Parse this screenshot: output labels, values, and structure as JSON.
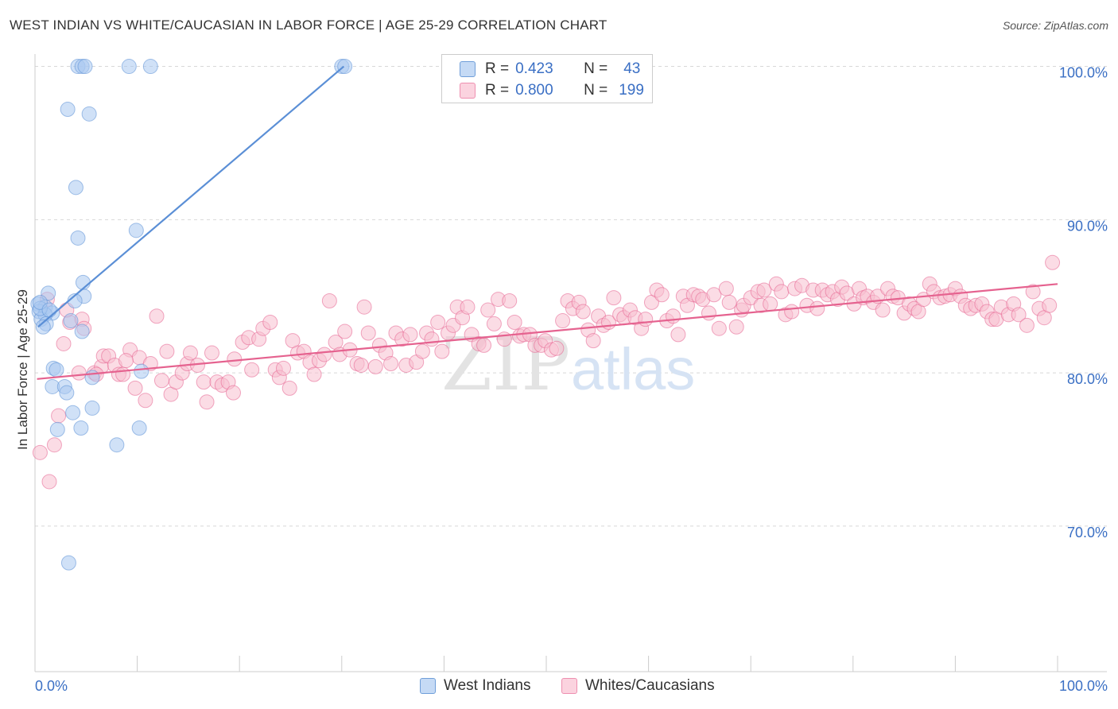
{
  "title": "WEST INDIAN VS WHITE/CAUCASIAN IN LABOR FORCE | AGE 25-29 CORRELATION CHART",
  "source": "Source: ZipAtlas.com",
  "watermark": {
    "zip": "ZIP",
    "atlas": "atlas"
  },
  "stats": [
    {
      "r_label": "R =",
      "r_value": "0.423",
      "n_label": "N =",
      "n_value": "43",
      "color": "#a9c8f0"
    },
    {
      "r_label": "R =",
      "r_value": "0.800",
      "n_label": "N =",
      "n_value": "199",
      "color": "#f8bfd0"
    }
  ],
  "legend": [
    {
      "label": "West Indians",
      "color": "#a9c8f0"
    },
    {
      "label": "Whites/Caucasians",
      "color": "#f8bfd0"
    }
  ],
  "chart_data": {
    "type": "scatter",
    "xlabel": "",
    "ylabel": "In Labor Force | Age 25-29",
    "xlim": [
      0,
      100
    ],
    "ylim": [
      60.5,
      102
    ],
    "x_tick_labels": [
      {
        "value": 0,
        "label": "0.0%"
      },
      {
        "value": 100,
        "label": "100.0%"
      }
    ],
    "y_tick_labels": [
      {
        "value": 100,
        "label": "100.0%"
      },
      {
        "value": 90,
        "label": "90.0%"
      },
      {
        "value": 80,
        "label": "80.0%"
      },
      {
        "value": 70,
        "label": "70.0%"
      }
    ],
    "grid": true,
    "legend_position": "bottom",
    "series": [
      {
        "name": "West Indians",
        "color": "#5b8fd6",
        "fill": "#a9c8f0",
        "trend": {
          "x": [
            0.3,
            30.2
          ],
          "y": [
            83.0,
            100.0
          ]
        },
        "points": [
          [
            4.2,
            100.0
          ],
          [
            4.6,
            100.0
          ],
          [
            4.9,
            100.0
          ],
          [
            9.2,
            100.0
          ],
          [
            11.3,
            100.0
          ],
          [
            30.0,
            100.0
          ],
          [
            30.3,
            100.0
          ],
          [
            3.2,
            97.2
          ],
          [
            5.3,
            96.9
          ],
          [
            4.0,
            92.1
          ],
          [
            4.2,
            88.8
          ],
          [
            9.9,
            89.3
          ],
          [
            4.7,
            85.9
          ],
          [
            1.3,
            85.2
          ],
          [
            4.8,
            85.0
          ],
          [
            0.3,
            84.5
          ],
          [
            1.0,
            84.3
          ],
          [
            0.4,
            84.0
          ],
          [
            1.7,
            83.9
          ],
          [
            1.0,
            83.8
          ],
          [
            0.6,
            83.5
          ],
          [
            3.5,
            83.4
          ],
          [
            1.1,
            83.2
          ],
          [
            0.8,
            83.0
          ],
          [
            4.6,
            82.7
          ],
          [
            0.5,
            84.2
          ],
          [
            3.9,
            84.7
          ],
          [
            1.8,
            80.3
          ],
          [
            2.1,
            80.2
          ],
          [
            10.4,
            80.1
          ],
          [
            5.6,
            79.7
          ],
          [
            1.7,
            79.1
          ],
          [
            2.9,
            79.1
          ],
          [
            3.1,
            78.7
          ],
          [
            5.6,
            77.7
          ],
          [
            3.7,
            77.4
          ],
          [
            2.2,
            76.3
          ],
          [
            4.5,
            76.4
          ],
          [
            10.2,
            76.4
          ],
          [
            8.0,
            75.3
          ],
          [
            3.3,
            67.6
          ],
          [
            0.5,
            84.6
          ],
          [
            1.4,
            84.1
          ]
        ]
      },
      {
        "name": "Whites/Caucasians",
        "color": "#e5628f",
        "fill": "#f8bfd0",
        "trend": {
          "x": [
            0.2,
            100
          ],
          "y": [
            79.6,
            85.8
          ]
        },
        "points": [
          [
            0.5,
            74.8
          ],
          [
            1.4,
            72.9
          ],
          [
            1.9,
            75.3
          ],
          [
            2.3,
            77.2
          ],
          [
            2.8,
            81.9
          ],
          [
            3.4,
            83.3
          ],
          [
            4.3,
            80.0
          ],
          [
            4.6,
            83.5
          ],
          [
            4.8,
            82.9
          ],
          [
            5.8,
            80.0
          ],
          [
            6.5,
            80.4
          ],
          [
            6.7,
            81.1
          ],
          [
            7.2,
            81.1
          ],
          [
            7.8,
            80.5
          ],
          [
            8.2,
            79.9
          ],
          [
            8.6,
            79.9
          ],
          [
            9.3,
            81.5
          ],
          [
            9.8,
            79.0
          ],
          [
            10.2,
            81.0
          ],
          [
            10.8,
            78.2
          ],
          [
            11.3,
            80.6
          ],
          [
            11.9,
            83.7
          ],
          [
            12.4,
            79.5
          ],
          [
            12.9,
            81.4
          ],
          [
            13.3,
            78.6
          ],
          [
            13.8,
            79.4
          ],
          [
            14.4,
            80.0
          ],
          [
            14.9,
            80.6
          ],
          [
            15.2,
            81.3
          ],
          [
            15.9,
            80.5
          ],
          [
            16.5,
            79.4
          ],
          [
            16.8,
            78.1
          ],
          [
            17.3,
            81.3
          ],
          [
            17.8,
            79.4
          ],
          [
            18.3,
            79.2
          ],
          [
            18.9,
            79.4
          ],
          [
            19.4,
            78.7
          ],
          [
            19.5,
            80.9
          ],
          [
            20.3,
            82.0
          ],
          [
            20.9,
            82.3
          ],
          [
            21.2,
            80.2
          ],
          [
            21.9,
            82.2
          ],
          [
            22.3,
            82.9
          ],
          [
            23.0,
            83.3
          ],
          [
            23.5,
            80.2
          ],
          [
            23.9,
            79.7
          ],
          [
            24.3,
            80.3
          ],
          [
            24.9,
            79.0
          ],
          [
            25.2,
            82.1
          ],
          [
            25.7,
            81.3
          ],
          [
            26.3,
            81.4
          ],
          [
            26.9,
            80.7
          ],
          [
            27.3,
            79.9
          ],
          [
            27.8,
            80.8
          ],
          [
            28.3,
            81.2
          ],
          [
            28.8,
            84.7
          ],
          [
            29.4,
            82.0
          ],
          [
            29.8,
            81.2
          ],
          [
            30.3,
            82.7
          ],
          [
            30.8,
            81.5
          ],
          [
            31.5,
            80.6
          ],
          [
            31.9,
            80.5
          ],
          [
            32.2,
            84.3
          ],
          [
            32.6,
            82.6
          ],
          [
            33.3,
            80.4
          ],
          [
            33.7,
            81.8
          ],
          [
            34.3,
            81.3
          ],
          [
            34.8,
            80.6
          ],
          [
            35.3,
            82.6
          ],
          [
            35.9,
            82.2
          ],
          [
            36.3,
            80.5
          ],
          [
            36.7,
            82.5
          ],
          [
            37.3,
            80.7
          ],
          [
            37.9,
            81.4
          ],
          [
            38.3,
            82.6
          ],
          [
            38.8,
            82.2
          ],
          [
            39.4,
            83.3
          ],
          [
            39.8,
            81.4
          ],
          [
            40.4,
            82.6
          ],
          [
            40.9,
            83.1
          ],
          [
            41.3,
            84.3
          ],
          [
            41.8,
            83.6
          ],
          [
            42.3,
            84.3
          ],
          [
            42.7,
            82.5
          ],
          [
            43.4,
            81.9
          ],
          [
            43.9,
            81.8
          ],
          [
            44.3,
            84.1
          ],
          [
            44.9,
            83.2
          ],
          [
            45.3,
            84.8
          ],
          [
            45.9,
            82.2
          ],
          [
            46.4,
            84.7
          ],
          [
            46.9,
            83.3
          ],
          [
            47.4,
            82.4
          ],
          [
            47.8,
            82.5
          ],
          [
            48.4,
            82.5
          ],
          [
            48.9,
            81.8
          ],
          [
            49.5,
            81.8
          ],
          [
            49.9,
            82.1
          ],
          [
            50.5,
            81.5
          ],
          [
            51.0,
            81.6
          ],
          [
            51.6,
            83.4
          ],
          [
            52.1,
            84.7
          ],
          [
            52.6,
            84.2
          ],
          [
            53.2,
            84.6
          ],
          [
            53.6,
            84.0
          ],
          [
            54.1,
            82.8
          ],
          [
            54.6,
            82.1
          ],
          [
            55.1,
            83.7
          ],
          [
            55.6,
            83.1
          ],
          [
            56.1,
            83.3
          ],
          [
            56.6,
            84.9
          ],
          [
            57.2,
            83.8
          ],
          [
            57.6,
            83.6
          ],
          [
            58.2,
            84.1
          ],
          [
            58.7,
            83.6
          ],
          [
            59.3,
            82.9
          ],
          [
            59.7,
            83.5
          ],
          [
            60.3,
            84.6
          ],
          [
            60.8,
            85.4
          ],
          [
            61.3,
            85.1
          ],
          [
            61.8,
            83.4
          ],
          [
            62.4,
            83.7
          ],
          [
            62.9,
            82.5
          ],
          [
            63.4,
            85.0
          ],
          [
            63.8,
            84.4
          ],
          [
            64.4,
            85.1
          ],
          [
            64.9,
            85.0
          ],
          [
            65.3,
            84.8
          ],
          [
            65.9,
            83.9
          ],
          [
            66.4,
            85.1
          ],
          [
            66.9,
            82.9
          ],
          [
            67.6,
            85.5
          ],
          [
            67.9,
            84.6
          ],
          [
            68.6,
            83.0
          ],
          [
            69.1,
            84.1
          ],
          [
            69.3,
            84.4
          ],
          [
            70.0,
            84.9
          ],
          [
            70.7,
            85.3
          ],
          [
            71.0,
            84.4
          ],
          [
            71.3,
            85.4
          ],
          [
            71.9,
            84.5
          ],
          [
            72.5,
            85.8
          ],
          [
            73.0,
            85.3
          ],
          [
            73.4,
            83.8
          ],
          [
            74.0,
            84.0
          ],
          [
            74.3,
            85.5
          ],
          [
            75.0,
            85.7
          ],
          [
            75.5,
            84.4
          ],
          [
            76.1,
            85.4
          ],
          [
            76.5,
            84.2
          ],
          [
            77.0,
            85.4
          ],
          [
            77.5,
            85.1
          ],
          [
            78.0,
            85.3
          ],
          [
            78.5,
            84.8
          ],
          [
            78.9,
            85.6
          ],
          [
            79.4,
            85.2
          ],
          [
            80.1,
            84.5
          ],
          [
            80.6,
            85.5
          ],
          [
            81.0,
            84.9
          ],
          [
            81.4,
            85.0
          ],
          [
            82.0,
            84.6
          ],
          [
            82.4,
            85.0
          ],
          [
            82.9,
            84.1
          ],
          [
            83.4,
            85.5
          ],
          [
            83.9,
            85.0
          ],
          [
            84.4,
            84.9
          ],
          [
            85.0,
            83.9
          ],
          [
            85.5,
            84.5
          ],
          [
            86.0,
            84.2
          ],
          [
            86.4,
            84.0
          ],
          [
            86.9,
            84.8
          ],
          [
            87.5,
            85.8
          ],
          [
            87.9,
            85.3
          ],
          [
            88.5,
            84.9
          ],
          [
            89.0,
            85.0
          ],
          [
            89.5,
            85.1
          ],
          [
            90.0,
            85.5
          ],
          [
            90.5,
            85.0
          ],
          [
            91.0,
            84.4
          ],
          [
            91.5,
            84.2
          ],
          [
            92.0,
            84.4
          ],
          [
            92.6,
            84.5
          ],
          [
            93.1,
            84.0
          ],
          [
            93.6,
            83.5
          ],
          [
            94.0,
            83.5
          ],
          [
            94.5,
            84.3
          ],
          [
            95.2,
            83.8
          ],
          [
            95.7,
            84.5
          ],
          [
            96.2,
            83.8
          ],
          [
            97.0,
            83.1
          ],
          [
            97.6,
            85.3
          ],
          [
            98.2,
            84.2
          ],
          [
            98.7,
            83.6
          ],
          [
            99.2,
            84.4
          ],
          [
            99.5,
            87.2
          ],
          [
            1.2,
            84.8
          ],
          [
            3.1,
            84.1
          ],
          [
            6.0,
            79.9
          ],
          [
            8.9,
            80.8
          ]
        ]
      }
    ]
  }
}
